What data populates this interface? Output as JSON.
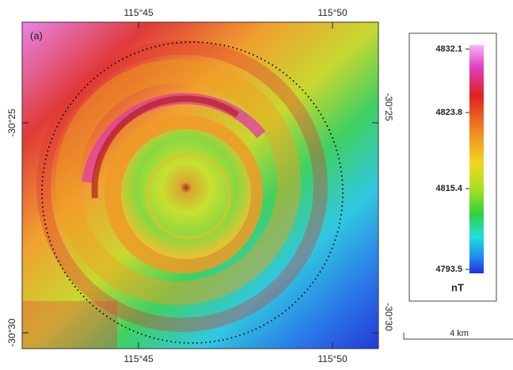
{
  "panel_label": "(a)",
  "top_ticks": [
    "115°45",
    "115°50"
  ],
  "bottom_ticks": [
    "115°45",
    "115°50"
  ],
  "left_ticks": [
    "-30°25",
    "-30°30"
  ],
  "right_ticks": [
    "-30°25",
    "-30°30"
  ],
  "colorbar": {
    "labels": [
      4832.1,
      4823.8,
      4815.4,
      4793.5
    ],
    "unit": "nT"
  },
  "scale_bar": "4 km"
}
